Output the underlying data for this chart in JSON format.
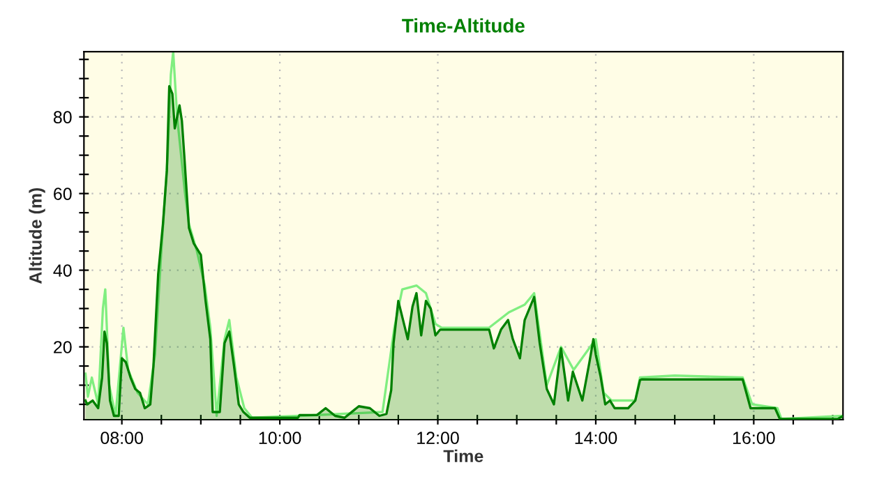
{
  "chart_data": {
    "type": "area",
    "title": "Time-Altitude",
    "xlabel": "Time",
    "ylabel": "Altitude (m)",
    "xlim": [
      7.52,
      17.13
    ],
    "ylim": [
      1,
      97
    ],
    "xticks": [
      {
        "value": 8,
        "label": "08:00"
      },
      {
        "value": 8.5,
        "label": null
      },
      {
        "value": 9,
        "label": null
      },
      {
        "value": 9.5,
        "label": null
      },
      {
        "value": 10,
        "label": "10:00"
      },
      {
        "value": 10.5,
        "label": null
      },
      {
        "value": 11,
        "label": null
      },
      {
        "value": 11.5,
        "label": null
      },
      {
        "value": 12,
        "label": "12:00"
      },
      {
        "value": 12.5,
        "label": null
      },
      {
        "value": 13,
        "label": null
      },
      {
        "value": 13.5,
        "label": null
      },
      {
        "value": 14,
        "label": "14:00"
      },
      {
        "value": 14.5,
        "label": null
      },
      {
        "value": 15,
        "label": null
      },
      {
        "value": 15.5,
        "label": null
      },
      {
        "value": 16,
        "label": "16:00"
      },
      {
        "value": 16.5,
        "label": null
      },
      {
        "value": 17,
        "label": null
      }
    ],
    "yticks": [
      {
        "value": 5,
        "label": null
      },
      {
        "value": 10,
        "label": null
      },
      {
        "value": 15,
        "label": null
      },
      20,
      {
        "value": 25,
        "label": null
      },
      {
        "value": 30,
        "label": null
      },
      {
        "value": 35,
        "label": null
      },
      40,
      {
        "value": 45,
        "label": null
      },
      {
        "value": 50,
        "label": null
      },
      {
        "value": 55,
        "label": null
      },
      60,
      {
        "value": 65,
        "label": null
      },
      {
        "value": 70,
        "label": null
      },
      {
        "value": 75,
        "label": null
      },
      80,
      {
        "value": 85,
        "label": null
      },
      {
        "value": 90,
        "label": null
      },
      {
        "value": 95,
        "label": null
      }
    ],
    "grid": true,
    "series": [
      {
        "color": "#008000",
        "x": [
          7.54,
          7.56,
          7.63,
          7.7,
          7.75,
          7.78,
          7.81,
          7.85,
          7.9,
          7.96,
          8.0,
          8.05,
          8.11,
          8.17,
          8.23,
          8.29,
          8.36,
          8.4,
          8.46,
          8.52,
          8.57,
          8.6,
          8.64,
          8.67,
          8.73,
          8.76,
          8.79,
          8.85,
          8.91,
          9.0,
          9.06,
          9.12,
          9.15,
          9.24,
          9.3,
          9.36,
          9.42,
          9.48,
          9.54,
          9.62,
          10.23,
          10.25,
          10.47,
          10.58,
          10.7,
          10.82,
          11.0,
          11.14,
          11.26,
          11.35,
          11.41,
          11.44,
          11.5,
          11.56,
          11.62,
          11.68,
          11.73,
          11.79,
          11.85,
          11.91,
          11.97,
          12.03,
          12.65,
          12.71,
          12.8,
          12.89,
          12.95,
          13.04,
          13.1,
          13.16,
          13.22,
          13.29,
          13.38,
          13.47,
          13.56,
          13.65,
          13.71,
          13.83,
          13.92,
          13.97,
          14.0,
          14.06,
          14.12,
          14.18,
          14.24,
          14.41,
          14.5,
          14.56,
          14.58,
          15.86,
          15.96,
          16.27,
          16.33,
          17.06,
          17.12
        ],
        "values": [
          6,
          5,
          6,
          4,
          12,
          24,
          21,
          6,
          2,
          2,
          17,
          16,
          12,
          9,
          8,
          4,
          5,
          15,
          39,
          52,
          66,
          88,
          86,
          77,
          83,
          79,
          70,
          51,
          47,
          44,
          32,
          22,
          3,
          3,
          21,
          24,
          15,
          5,
          3,
          1.5,
          1.5,
          2.2,
          2.2,
          4,
          2,
          1.5,
          4.5,
          4,
          2,
          2.5,
          8.7,
          21,
          32,
          27,
          22,
          30.5,
          34,
          23,
          32,
          30,
          23,
          24.5,
          24.5,
          19.6,
          24.5,
          27,
          22,
          17,
          27,
          30,
          33,
          21,
          9,
          5,
          19.6,
          6,
          13.5,
          6,
          16,
          22,
          18,
          12.4,
          5,
          6,
          4,
          4,
          6,
          11.3,
          11.5,
          11.5,
          4,
          4,
          1.2,
          1.2,
          1.8
        ]
      },
      {
        "type": "line",
        "color": "#80ee80",
        "x": [
          7.54,
          7.57,
          7.62,
          7.7,
          7.76,
          7.79,
          7.84,
          7.92,
          8.02,
          8.08,
          8.2,
          8.33,
          8.42,
          8.5,
          8.58,
          8.62,
          8.65,
          8.7,
          8.8,
          8.85,
          8.95,
          9.05,
          9.12,
          9.2,
          9.3,
          9.36,
          9.45,
          9.55,
          9.65,
          10.25,
          11.3,
          11.45,
          11.55,
          11.73,
          11.85,
          11.97,
          12.05,
          12.65,
          12.9,
          13.1,
          13.22,
          13.38,
          13.56,
          13.72,
          14.0,
          14.1,
          14.2,
          14.5,
          14.56,
          15.0,
          15.86,
          15.98,
          16.3,
          16.35,
          17.12
        ],
        "values": [
          13,
          7,
          12,
          5,
          30,
          35,
          10,
          2,
          25,
          14,
          8,
          5,
          18,
          45,
          70,
          91,
          97,
          80,
          60,
          52,
          45,
          36,
          25,
          2,
          22,
          27,
          12,
          4,
          1.5,
          2,
          3,
          25,
          35,
          36,
          34,
          26,
          25,
          25,
          29,
          31,
          34,
          10,
          20,
          14,
          22,
          8,
          6,
          6,
          12,
          12.5,
          12,
          5,
          4,
          1.2,
          2
        ]
      }
    ]
  }
}
